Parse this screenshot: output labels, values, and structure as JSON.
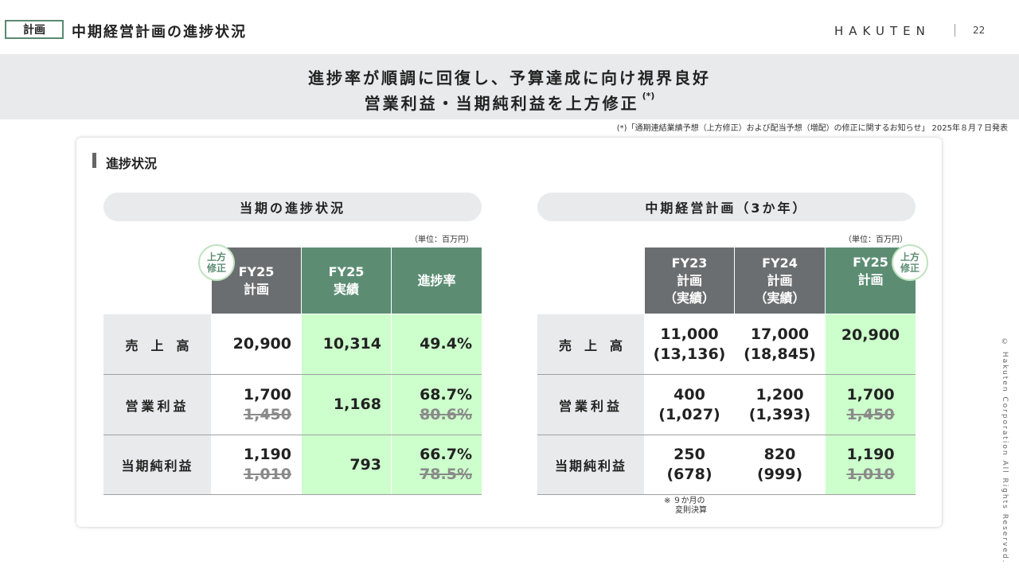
{
  "header": {
    "tag": "計画",
    "title": "中期経営計画の進捗状況",
    "logo": "HAKUTEN",
    "page_number": "22"
  },
  "banner": {
    "line1": "進捗率が順調に回復し、予算達成に向け視界良好",
    "line2": "営業利益・当期純利益を上方修正",
    "line2_note": "(*)",
    "footnote": "(*)「通期連結業績予想（上方修正）および配当予想（増配）の修正に関するお知らせ」 2025年８月７日発表"
  },
  "section": {
    "title": "進捗状況"
  },
  "left_table": {
    "title": "当期の進捗状況",
    "unit": "（単位：百万円）",
    "badge": [
      "上方",
      "修正"
    ],
    "headers": [
      [
        "FY25",
        "計画"
      ],
      [
        "FY25",
        "実績"
      ],
      [
        "進捗率"
      ]
    ],
    "rows": [
      {
        "label": "売　上　高",
        "plan": "20,900",
        "plan_old": "",
        "actual": "10,314",
        "rate": "49.4%",
        "rate_old": ""
      },
      {
        "label": "営業利益",
        "plan": "1,700",
        "plan_old": "1,450",
        "actual": "1,168",
        "rate": "68.7%",
        "rate_old": "80.6%"
      },
      {
        "label": "当期純利益",
        "plan": "1,190",
        "plan_old": "1,010",
        "actual": "793",
        "rate": "66.7%",
        "rate_old": "78.5%"
      }
    ]
  },
  "right_table": {
    "title": "中期経営計画（3か年）",
    "unit": "（単位：百万円）",
    "badge": [
      "上方",
      "修正"
    ],
    "headers": [
      [
        "FY23",
        "計画",
        "（実績）"
      ],
      [
        "FY24",
        "計画",
        "（実績）"
      ],
      [
        "FY25",
        "計画"
      ]
    ],
    "rows": [
      {
        "label": "売　上　高",
        "fy23": "11,000",
        "fy23_actual": "(13,136)",
        "fy24": "17,000",
        "fy24_actual": "(18,845)",
        "fy25": "20,900",
        "fy25_old": ""
      },
      {
        "label": "営業利益",
        "fy23": "400",
        "fy23_actual": "(1,027)",
        "fy24": "1,200",
        "fy24_actual": "(1,393)",
        "fy25": "1,700",
        "fy25_old": "1,450"
      },
      {
        "label": "当期純利益",
        "fy23": "250",
        "fy23_actual": "(678)",
        "fy24": "820",
        "fy24_actual": "(999)",
        "fy25": "1,190",
        "fy25_old": "1,010"
      }
    ],
    "note": [
      "※ ９か月の",
      "変則決算"
    ]
  },
  "copyright": "© Hakuten Corporation All Rights Reserved."
}
